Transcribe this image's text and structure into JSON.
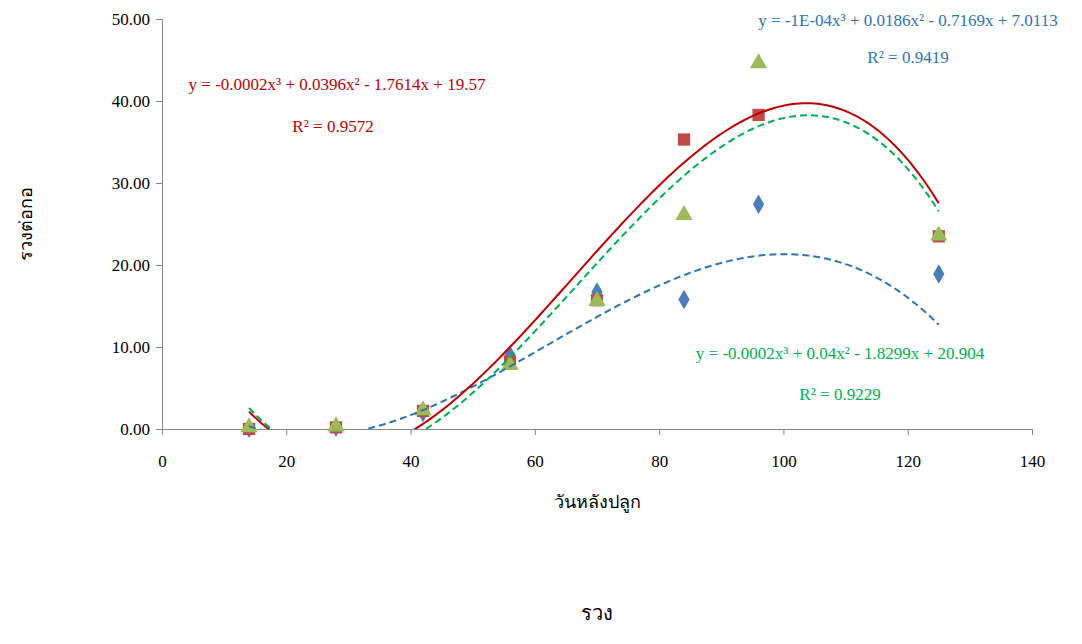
{
  "chart_data": {
    "type": "scatter",
    "title": "รวง",
    "x_label": "วันหลังปลูก",
    "y_label": "รวงต่อกอ",
    "x": [
      14,
      28,
      42,
      56,
      70,
      84,
      96,
      125
    ],
    "xlim": [
      0,
      140
    ],
    "xticks": [
      0,
      20,
      40,
      60,
      80,
      100,
      120,
      140
    ],
    "ylim": [
      0,
      50
    ],
    "yticks": [
      {
        "value": 0,
        "label": "0.00"
      },
      {
        "value": 10,
        "label": "10.00"
      },
      {
        "value": 20,
        "label": "20.00"
      },
      {
        "value": 30,
        "label": "30.00"
      },
      {
        "value": 40,
        "label": "40.00"
      },
      {
        "value": 50,
        "label": "50.00"
      }
    ],
    "grid": false,
    "series": [
      {
        "color": "#4a7ebb",
        "marker": "diamond",
        "values": [
          0.1,
          0.2,
          2.0,
          9.0,
          16.7,
          15.8,
          27.4,
          18.9
        ],
        "trendline": {
          "equation": "y = -1E-04x³ + 0.0186x² - 0.7169x + 7.0113",
          "r2": "R² = 0.9419",
          "coefficients": [
            -0.0001,
            0.0186,
            -0.7169,
            7.0113
          ],
          "color": "#2e75b6",
          "line_style": "dashed"
        }
      },
      {
        "color": "#be4b48",
        "marker": "square",
        "values": [
          0.0,
          0.2,
          2.2,
          8.2,
          15.7,
          35.3,
          38.3,
          23.5
        ],
        "trendline": {
          "equation": "y = -0.0002x³ + 0.0396x² - 1.7614x + 19.57",
          "r2": "R² = 0.9572",
          "coefficients": [
            -0.0002,
            0.0396,
            -1.7614,
            19.57
          ],
          "color": "#c00000",
          "line_style": "solid"
        }
      },
      {
        "color": "#9bbb59",
        "marker": "triangle",
        "values": [
          0.2,
          0.3,
          2.3,
          7.8,
          15.6,
          26.1,
          44.6,
          23.6
        ],
        "trendline": {
          "equation": "y = -0.0002x³ + 0.04x² - 1.8299x + 20.904",
          "r2": "R² = 0.9229",
          "coefficients": [
            -0.0002,
            0.04,
            -1.8299,
            20.904
          ],
          "color": "#00b050",
          "line_style": "dashed"
        }
      }
    ]
  }
}
